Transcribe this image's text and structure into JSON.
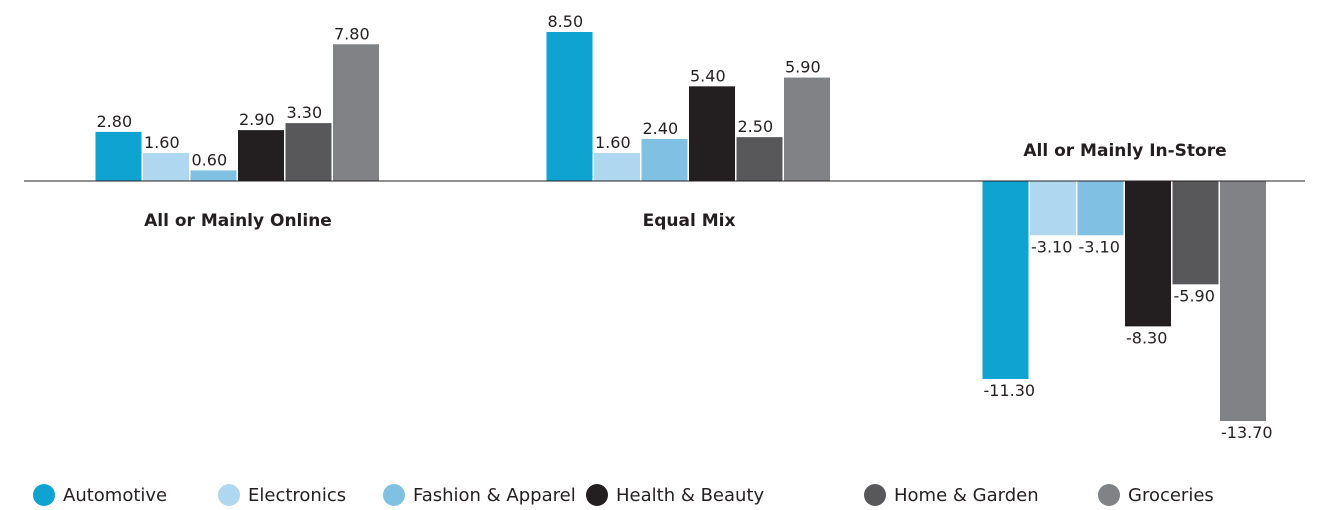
{
  "chart_data": {
    "type": "bar",
    "categories": [
      "All or Mainly Online",
      "Equal Mix",
      "All or Mainly In-Store"
    ],
    "series": [
      {
        "name": "Automotive",
        "color": "#0fa3d1",
        "values": [
          2.8,
          8.5,
          -11.3
        ],
        "value_labels": [
          "2.80",
          "8.50",
          "-11.30"
        ]
      },
      {
        "name": "Electronics",
        "color": "#afd7ef",
        "values": [
          1.6,
          1.6,
          -3.1
        ],
        "value_labels": [
          "1.60",
          "1.60",
          "-3.10"
        ]
      },
      {
        "name": "Fashion & Apparel",
        "color": "#80c0e2",
        "values": [
          0.6,
          2.4,
          -3.1
        ],
        "value_labels": [
          "0.60",
          "2.40",
          "-3.10"
        ]
      },
      {
        "name": "Health & Beauty",
        "color": "#231f20",
        "values": [
          2.9,
          5.4,
          -8.3
        ],
        "value_labels": [
          "2.90",
          "5.40",
          "-8.30"
        ]
      },
      {
        "name": "Home & Garden",
        "color": "#58585a",
        "values": [
          3.3,
          2.5,
          -5.9
        ],
        "value_labels": [
          "3.30",
          "2.50",
          "-5.90"
        ]
      },
      {
        "name": "Groceries",
        "color": "#818285",
        "values": [
          7.8,
          5.9,
          -13.7
        ],
        "value_labels": [
          "7.80",
          "5.90",
          "-13.70"
        ]
      }
    ],
    "legend": "bottom"
  }
}
